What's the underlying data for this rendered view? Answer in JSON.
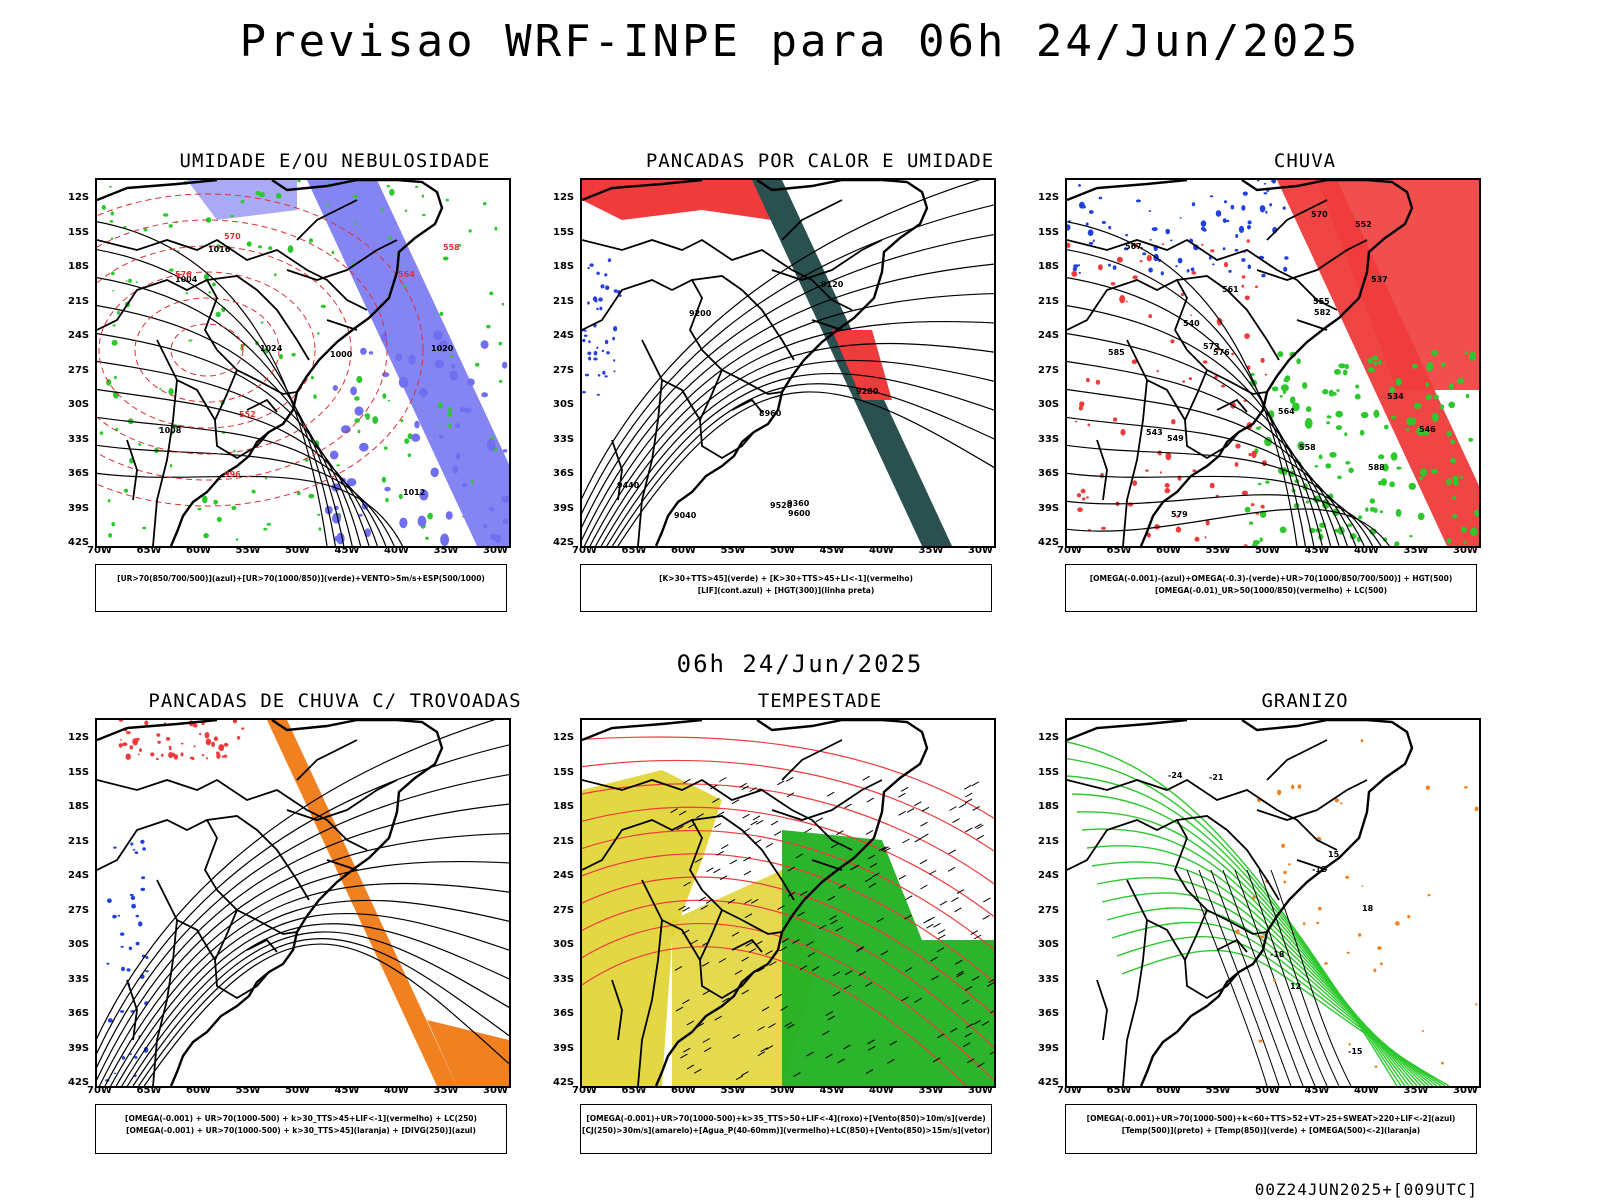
{
  "title": "Previsao WRF-INPE  para 06h 24/Jun/2025",
  "mid_label": "06h 24/Jun/2025",
  "footer": "00Z24JUN2025+[009UTC]",
  "lat_labels": [
    "12S",
    "15S",
    "18S",
    "21S",
    "24S",
    "27S",
    "30S",
    "33S",
    "36S",
    "39S",
    "42S"
  ],
  "lon_labels": [
    "70W",
    "65W",
    "60W",
    "55W",
    "50W",
    "45W",
    "40W",
    "35W",
    "30W"
  ],
  "panels": [
    {
      "title": "UMIDADE E/OU NEBULOSIDADE",
      "legend": [
        "[UR>70(850/700/500)](azul)+[UR>70(1000/850)](verde)+VENTO>5m/s+ESP(500/1000)"
      ],
      "contour_labels": [
        "1016",
        "1020",
        "1024",
        "1012",
        "1008",
        "1004",
        "1000",
        "996",
        "552",
        "558",
        "564",
        "570",
        "576"
      ],
      "colors": {
        "primary": "#6f6ff0",
        "secondary": "#2ec82e",
        "contour": "#e03030"
      }
    },
    {
      "title": "PANCADAS POR CALOR E UMIDADE",
      "legend": [
        "[K>30+TTS>45](verde) + [K>30+TTS>45+LI<-1](vermelho)",
        "[LIF](cont.azul) + [HGT(300)](linha preta)"
      ],
      "contour_labels": [
        "9600",
        "9520",
        "9440",
        "9360",
        "9280",
        "9200",
        "9120",
        "9040",
        "8960"
      ],
      "colors": {
        "primary": "#ef3b3b",
        "secondary": "#2a5050",
        "contour": "#2a40e0"
      }
    },
    {
      "title": "CHUVA",
      "legend": [
        "[OMEGA(-0.001)-(azul)+OMEGA(-0.3)-(verde)+UR>70(1000/850/700/500)] + HGT(500)",
        "[OMEGA(-0.01)_UR>50(1000/850)(vermelho) + LC(500)"
      ],
      "contour_labels": [
        "588",
        "585",
        "582",
        "579",
        "576",
        "573",
        "570",
        "567",
        "564",
        "561",
        "558",
        "555",
        "552",
        "549",
        "546",
        "543",
        "540",
        "537",
        "534"
      ],
      "colors": {
        "primary": "#ef3b3b",
        "secondary": "#2ec82e",
        "tertiary": "#2040e0"
      }
    },
    {
      "title": "PANCADAS DE CHUVA C/ TROVOADAS",
      "legend": [
        "[OMEGA(-0.001) + UR>70(1000-500) + k>30_TTS>45+LIF<-1](vermelho) + LC(250)",
        "[OMEGA(-0.001) + UR>70(1000-500) + k>30_TTS>45](laranja) + [DIVG(250)](azul)"
      ],
      "contour_labels": [],
      "colors": {
        "primary": "#f08020",
        "secondary": "#ef3b3b",
        "tertiary": "#2040e0"
      }
    },
    {
      "title": "TEMPESTADE",
      "legend": [
        "[OMEGA(-0.001)+UR>70(1000-500)+k>35_TTS>50+LIF<-4](roxo)+[Vento(850)>10m/s](verde)",
        "[CJ(250)>30m/s](amarelo)+[Agua_P(40-60mm)](vermelho)+LC(850)+[Vento(850)>15m/s](vetor)"
      ],
      "contour_labels": [],
      "colors": {
        "primary": "#e0d430",
        "secondary": "#22b022",
        "contour": "#ef3b3b"
      }
    },
    {
      "title": "GRANIZO",
      "legend": [
        "[OMEGA(-0.001)+UR>70(1000-500)+k<60+TTS>52+VT>25+SWEAT>220+LIF<-2](azul)",
        "[Temp(500)](preto) + [Temp(850)](verde) + [OMEGA(500)<-2](laranja)"
      ],
      "contour_labels": [
        "-12",
        "-15",
        "-18",
        "-21",
        "-24",
        "12",
        "15",
        "18"
      ],
      "colors": {
        "primary": "#2ec82e",
        "secondary": "#f08020",
        "contour": "#000000"
      }
    }
  ]
}
